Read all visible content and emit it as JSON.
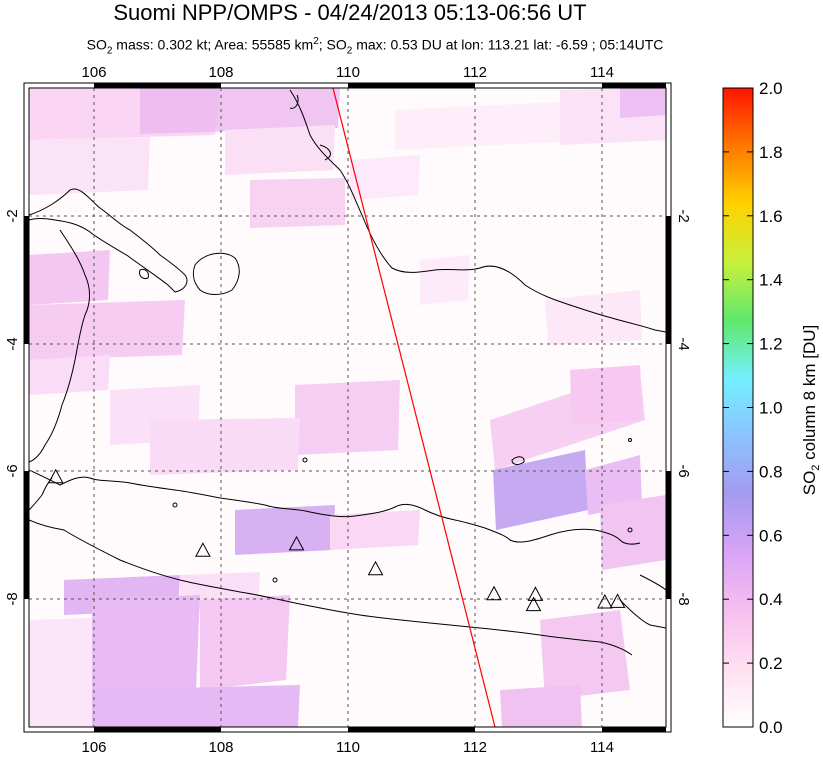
{
  "title": "Suomi NPP/OMPS - 04/24/2013 05:13-06:56 UT",
  "subtitle": {
    "mass_label": "SO",
    "mass_sub": "2",
    "mass_rest": " mass: 0.302 kt; Area: 55585 km",
    "area_sup": "2",
    "max_label": "; SO",
    "max_sub": "2",
    "max_rest": " max: 0.53 DU at lon: 113.21 lat: -6.59 ; 05:14UTC"
  },
  "map": {
    "lon_range": [
      105,
      115
    ],
    "lat_range": [
      -10,
      0
    ],
    "lon_ticks": [
      "106",
      "108",
      "110",
      "112",
      "114"
    ],
    "lat_ticks": [
      "-2",
      "-4",
      "-6",
      "-8"
    ],
    "orbit_line_color": "#ff0000",
    "volcanoes": [
      {
        "lon": 105.42,
        "lat": -6.1
      },
      {
        "lon": 107.73,
        "lat": -7.25
      },
      {
        "lon": 109.2,
        "lat": -7.15
      },
      {
        "lon": 110.44,
        "lat": -7.54
      },
      {
        "lon": 112.3,
        "lat": -7.93
      },
      {
        "lon": 112.95,
        "lat": -7.94
      },
      {
        "lon": 112.92,
        "lat": -8.1
      },
      {
        "lon": 114.04,
        "lat": -8.06
      },
      {
        "lon": 114.24,
        "lat": -8.05
      }
    ]
  },
  "colorbar": {
    "label_main": "SO",
    "label_sub": "2",
    "label_rest": " column 8 km [DU]",
    "ticks": [
      "0.0",
      "0.2",
      "0.4",
      "0.6",
      "0.8",
      "1.0",
      "1.2",
      "1.4",
      "1.6",
      "1.8",
      "2.0"
    ],
    "vmin": 0,
    "vmax": 2,
    "colors": [
      "#ffffff",
      "#ffe0f0",
      "#f7bff0",
      "#d9a4f5",
      "#a59af0",
      "#8cc2ff",
      "#74f0ff",
      "#5fe86b",
      "#c8f03c",
      "#ffd200",
      "#ff7800",
      "#ff1400"
    ]
  }
}
